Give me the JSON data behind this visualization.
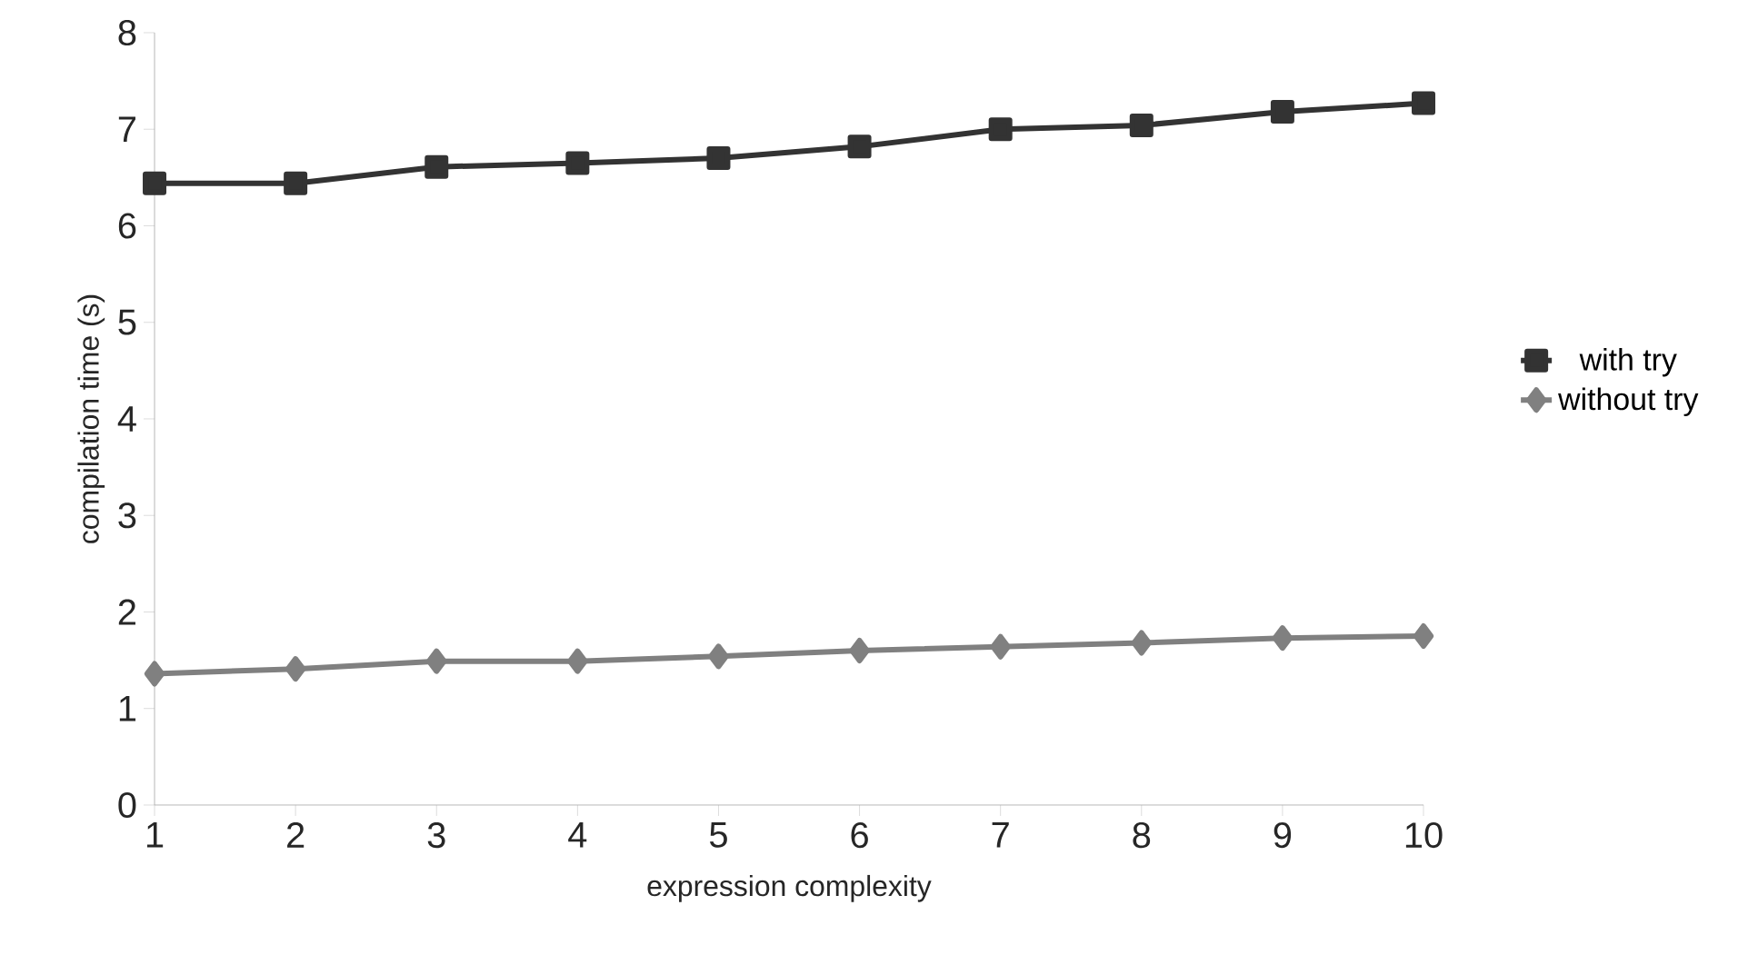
{
  "chart_data": {
    "type": "line",
    "xlabel": "expression complexity",
    "ylabel": "compilation time (s)",
    "x": [
      1,
      2,
      3,
      4,
      5,
      6,
      7,
      8,
      9,
      10
    ],
    "series": [
      {
        "name": "with try",
        "color": "#333333",
        "marker": "square",
        "values": [
          6.44,
          6.44,
          6.61,
          6.65,
          6.7,
          6.82,
          7.0,
          7.04,
          7.18,
          7.27
        ]
      },
      {
        "name": "without try",
        "color": "#808080",
        "marker": "diamond",
        "values": [
          1.36,
          1.41,
          1.49,
          1.49,
          1.54,
          1.6,
          1.64,
          1.68,
          1.73,
          1.75
        ]
      }
    ],
    "xlim": [
      1,
      10
    ],
    "xticks": [
      1,
      2,
      3,
      4,
      5,
      6,
      7,
      8,
      9,
      10
    ],
    "ylim": [
      0,
      8
    ],
    "yticks": [
      0,
      1,
      2,
      3,
      4,
      5,
      6,
      7,
      8
    ],
    "grid": false,
    "legend": "right",
    "line_style": "solid"
  }
}
